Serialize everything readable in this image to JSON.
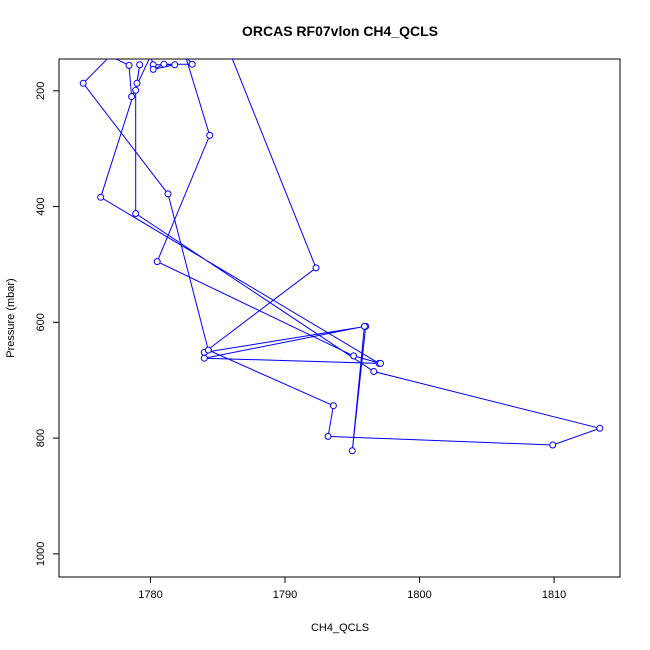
{
  "chart_data": {
    "type": "line",
    "title": "ORCAS RF07vlon CH4_QCLS",
    "xlabel": "CH4_QCLS",
    "ylabel": "Pressure (mbar)",
    "xlim": [
      1773.2,
      1814.9
    ],
    "ylim": [
      1040,
      145
    ],
    "y_reversed": true,
    "x_ticks": [
      1780,
      1790,
      1800,
      1810
    ],
    "y_ticks": [
      200,
      400,
      600,
      800,
      1000
    ],
    "grid": false,
    "legend": "none",
    "series_color": "#0000ff",
    "points": [
      {
        "x": 1786.0,
        "y": 140
      },
      {
        "x": 1792.3,
        "y": 506
      },
      {
        "x": 1784.0,
        "y": 652
      },
      {
        "x": 1796.0,
        "y": 607
      },
      {
        "x": 1795.0,
        "y": 822
      },
      {
        "x": 1795.9,
        "y": 607
      },
      {
        "x": 1784.0,
        "y": 662
      },
      {
        "x": 1797.0,
        "y": 671
      },
      {
        "x": 1776.3,
        "y": 384
      },
      {
        "x": 1779.0,
        "y": 187
      },
      {
        "x": 1779.2,
        "y": 155
      },
      {
        "x": 1778.9,
        "y": 199
      },
      {
        "x": 1778.9,
        "y": 412
      },
      {
        "x": 1796.6,
        "y": 685
      },
      {
        "x": 1813.4,
        "y": 783
      },
      {
        "x": 1809.9,
        "y": 812
      },
      {
        "x": 1793.2,
        "y": 797
      },
      {
        "x": 1793.6,
        "y": 744
      },
      {
        "x": 1784.3,
        "y": 648
      },
      {
        "x": 1781.3,
        "y": 378
      },
      {
        "x": 1775.0,
        "y": 187
      },
      {
        "x": 1777.0,
        "y": 140
      },
      {
        "x": 1778.4,
        "y": 156
      },
      {
        "x": 1778.6,
        "y": 210
      },
      {
        "x": 1780.0,
        "y": 140
      },
      {
        "x": 1780.2,
        "y": 155
      },
      {
        "x": 1781.8,
        "y": 155
      },
      {
        "x": 1780.2,
        "y": 163
      },
      {
        "x": 1781.0,
        "y": 154
      },
      {
        "x": 1783.1,
        "y": 154
      },
      {
        "x": 1782.6,
        "y": 140
      },
      {
        "x": 1784.4,
        "y": 277
      },
      {
        "x": 1780.5,
        "y": 495
      },
      {
        "x": 1795.1,
        "y": 658
      },
      {
        "x": 1797.1,
        "y": 671
      }
    ]
  }
}
